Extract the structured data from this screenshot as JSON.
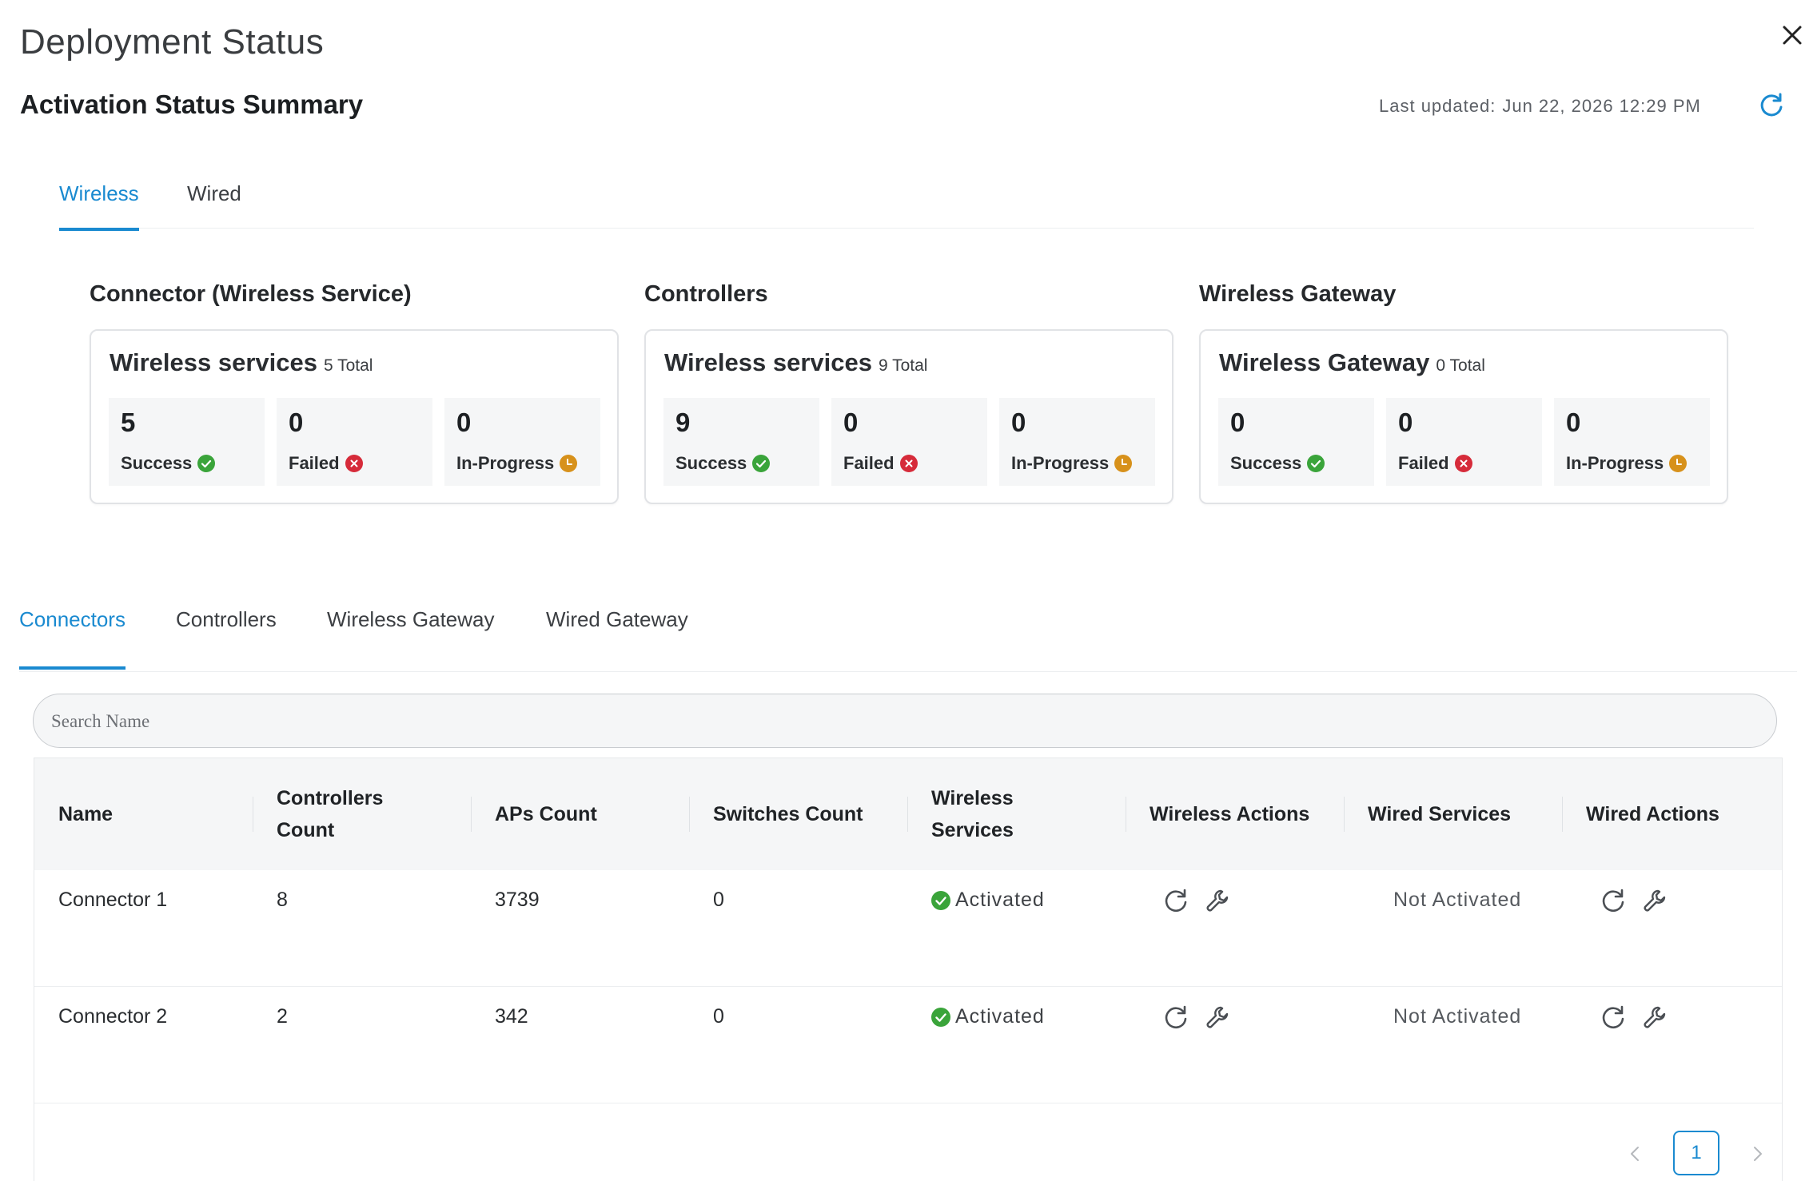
{
  "header": {
    "title": "Deployment Status",
    "summary_title": "Activation Status Summary",
    "last_updated_label": "Last updated:",
    "last_updated_value": "Jun 22, 2026 12:29 PM"
  },
  "top_tabs": [
    {
      "label": "Wireless",
      "active": true
    },
    {
      "label": "Wired",
      "active": false
    }
  ],
  "sections": [
    {
      "title": "Connector (Wireless Service)",
      "card_name": "Wireless services",
      "total": "5 Total",
      "stats": [
        {
          "value": "5",
          "label": "Success"
        },
        {
          "value": "0",
          "label": "Failed"
        },
        {
          "value": "0",
          "label": "In-Progress"
        }
      ]
    },
    {
      "title": "Controllers",
      "card_name": "Wireless services",
      "total": "9 Total",
      "stats": [
        {
          "value": "9",
          "label": "Success"
        },
        {
          "value": "0",
          "label": "Failed"
        },
        {
          "value": "0",
          "label": "In-Progress"
        }
      ]
    },
    {
      "title": "Wireless Gateway",
      "card_name": "Wireless Gateway",
      "total": "0 Total",
      "stats": [
        {
          "value": "0",
          "label": "Success"
        },
        {
          "value": "0",
          "label": "Failed"
        },
        {
          "value": "0",
          "label": "In-Progress"
        }
      ]
    }
  ],
  "sub_tabs": [
    {
      "label": "Connectors",
      "active": true
    },
    {
      "label": "Controllers",
      "active": false
    },
    {
      "label": "Wireless Gateway",
      "active": false
    },
    {
      "label": "Wired Gateway",
      "active": false
    }
  ],
  "search": {
    "placeholder": "Search Name",
    "value": ""
  },
  "table": {
    "columns": {
      "name": "Name",
      "controllers_1": "Controllers",
      "controllers_2": "Count",
      "aps": "APs Count",
      "switches": "Switches Count",
      "wireless_services_1": "Wireless",
      "wireless_services_2": "Services",
      "wireless_actions": "Wireless Actions",
      "wired_services": "Wired Services",
      "wired_actions": "Wired Actions"
    },
    "rows": [
      {
        "name": "Connector 1",
        "controllers": "8",
        "aps": "3739",
        "switches": "0",
        "wireless_status": "Activated",
        "wired_status": "Not Activated"
      },
      {
        "name": "Connector 2",
        "controllers": "2",
        "aps": "342",
        "switches": "0",
        "wireless_status": "Activated",
        "wired_status": "Not Activated"
      }
    ]
  },
  "pagination": {
    "current_page": "1"
  },
  "icons": {
    "close": "close-icon",
    "refresh": "refresh-icon",
    "success": "check-circle-icon",
    "failed": "x-circle-icon",
    "in_progress": "clock-icon",
    "retry": "retry-icon",
    "configure": "wrench-icon",
    "prev": "chevron-left-icon",
    "next": "chevron-right-icon"
  },
  "colors": {
    "accent": "#1a8ad0",
    "success": "#3aa43a",
    "failed": "#d62b3a",
    "in_progress": "#d7911b"
  }
}
